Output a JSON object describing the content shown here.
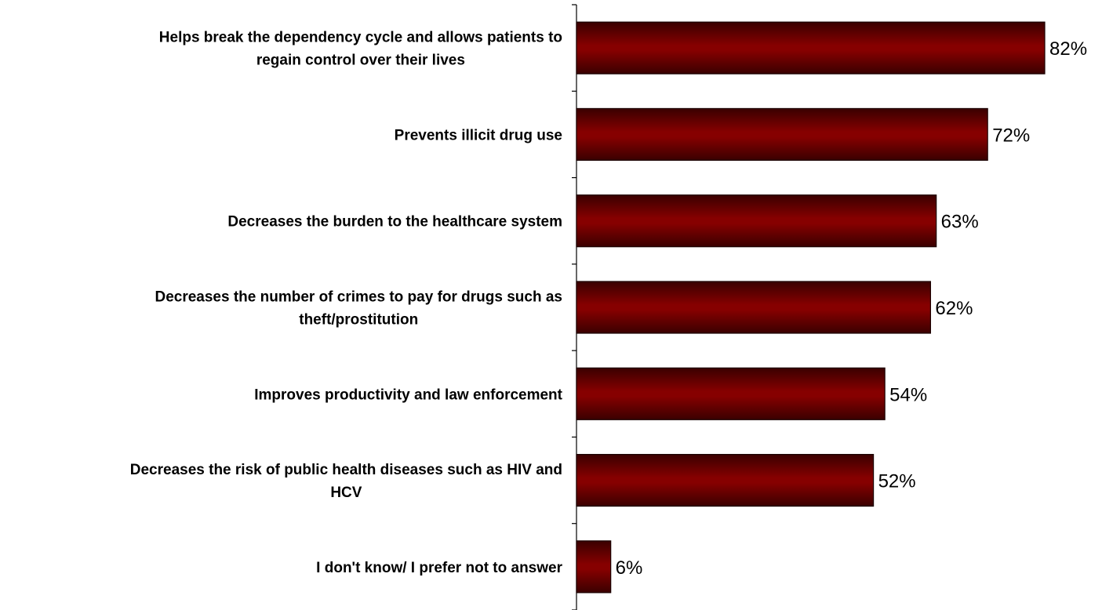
{
  "chart_data": {
    "type": "bar",
    "orientation": "horizontal",
    "categories": [
      [
        "Helps break the dependency cycle and allows patients to",
        "regain control over their lives"
      ],
      [
        "Prevents illicit drug use"
      ],
      [
        "Decreases the burden to the healthcare system"
      ],
      [
        "Decreases the number of crimes to pay for drugs such as",
        "theft/prostitution"
      ],
      [
        "Improves productivity and law enforcement"
      ],
      [
        "Decreases the risk of public health diseases such as HIV and",
        "HCV"
      ],
      [
        "I don't know/ I prefer not to answer"
      ]
    ],
    "values": [
      82,
      72,
      63,
      62,
      54,
      52,
      6
    ],
    "value_labels": [
      "82%",
      "72%",
      "63%",
      "62%",
      "54%",
      "52%",
      "6%"
    ],
    "title": "",
    "xlabel": "",
    "ylabel": "",
    "xlim": [
      0,
      100
    ],
    "grid": false,
    "legend": "none",
    "bar_color": "#7a0000",
    "bar_edge_color": "#1a0000"
  }
}
